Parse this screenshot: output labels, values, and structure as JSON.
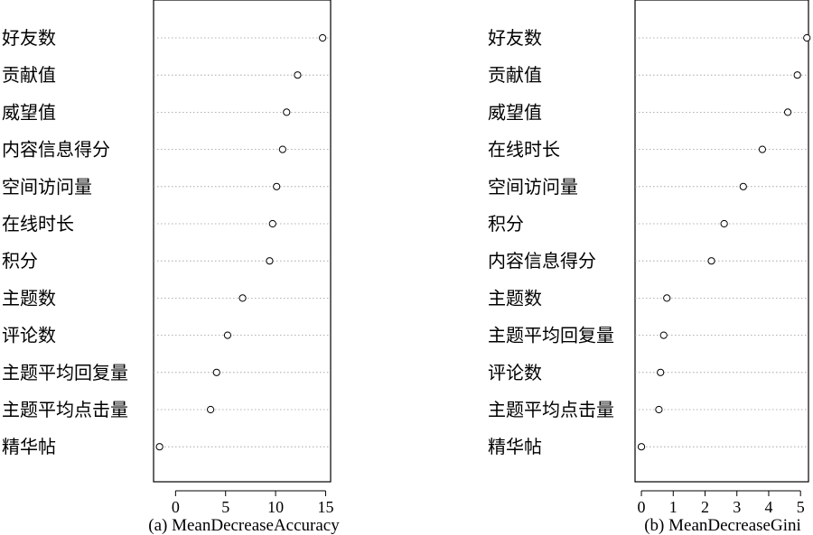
{
  "chart_data": [
    {
      "type": "scatter",
      "caption": "(a) MeanDecreaseAccuracy",
      "categories": [
        "好友数",
        "贡献值",
        "威望值",
        "内容信息得分",
        "空间访问量",
        "在线时长",
        "积分",
        "主题数",
        "评论数",
        "主题平均回复量",
        "主题平均点击量",
        "精华帖"
      ],
      "values": [
        14.7,
        12.2,
        11.1,
        10.7,
        10.1,
        9.7,
        9.4,
        6.7,
        5.2,
        4.1,
        3.5,
        -1.6
      ],
      "xlim": [
        -2.2,
        15.5
      ],
      "xticks": [
        0,
        5,
        10,
        15
      ],
      "grid": "dotted-horizontal"
    },
    {
      "type": "scatter",
      "caption": "(b) MeanDecreaseGini",
      "categories": [
        "好友数",
        "贡献值",
        "威望值",
        "在线时长",
        "空间访问量",
        "积分",
        "内容信息得分",
        "主题数",
        "主题平均回复量",
        "评论数",
        "主题平均点击量",
        "精华帖"
      ],
      "values": [
        5.2,
        4.9,
        4.6,
        3.8,
        3.2,
        2.6,
        2.2,
        0.8,
        0.7,
        0.6,
        0.55,
        0.0
      ],
      "xlim": [
        -0.2,
        5.25
      ],
      "xticks": [
        0,
        1,
        2,
        3,
        4,
        5
      ],
      "grid": "dotted-horizontal"
    }
  ]
}
